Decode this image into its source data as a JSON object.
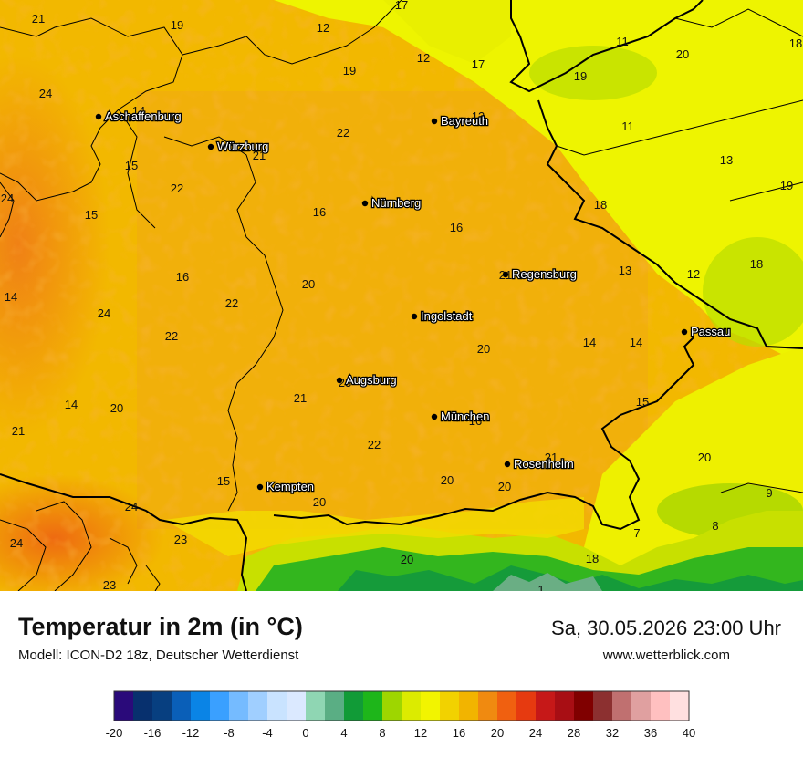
{
  "map": {
    "cities": [
      {
        "name": "Aschaffenburg"
      },
      {
        "name": "Würzburg"
      },
      {
        "name": "Bayreuth"
      },
      {
        "name": "Nürnberg"
      },
      {
        "name": "Regensburg"
      },
      {
        "name": "Ingolstadt"
      },
      {
        "name": "Passau"
      },
      {
        "name": "Augsburg"
      },
      {
        "name": "München"
      },
      {
        "name": "Rosenheim"
      },
      {
        "name": "Kempten"
      }
    ],
    "values": [
      "21",
      "19",
      "12",
      "17",
      "12",
      "17",
      "11",
      "20",
      "18",
      "24",
      "14",
      "19",
      "22",
      "13",
      "11",
      "19",
      "13",
      "19",
      "15",
      "21",
      "22",
      "16",
      "18",
      "16",
      "24",
      "15",
      "16",
      "13",
      "12",
      "18",
      "14",
      "20",
      "24",
      "22",
      "21",
      "20",
      "14",
      "14",
      "22",
      "14",
      "20",
      "21",
      "23",
      "15",
      "22",
      "21",
      "20",
      "16",
      "21",
      "20",
      "15",
      "20",
      "20",
      "24",
      "9",
      "24",
      "23",
      "7",
      "8",
      "23",
      "20",
      "18",
      "1"
    ]
  },
  "footer": {
    "title": "Temperatur in 2m (in °C)",
    "datetime": "Sa, 30.05.2026 23:00 Uhr",
    "model": "Modell: ICON-D2 18z, Deutscher Wetterdienst",
    "website": "www.wetterblick.com"
  },
  "legend": {
    "ticks": [
      "-20",
      "-16",
      "-12",
      "-8",
      "-4",
      "0",
      "4",
      "8",
      "12",
      "16",
      "20",
      "24",
      "28",
      "32",
      "36",
      "40"
    ],
    "colors": [
      "#2a0a7a",
      "#07306e",
      "#073f80",
      "#0a5fb8",
      "#0a84e6",
      "#3aa0ff",
      "#75bbff",
      "#a0cfff",
      "#c9e3ff",
      "#dbe9ff",
      "#8fd6b3",
      "#5aae84",
      "#119b37",
      "#1eb61a",
      "#9ed600",
      "#dceb00",
      "#f2f400",
      "#f2d200",
      "#f2b400",
      "#f08a10",
      "#f06010",
      "#e63a10",
      "#c61818",
      "#a80e14",
      "#800000",
      "#8c3030",
      "#c07070",
      "#e0a0a0",
      "#ffc0c0",
      "#ffe0e0"
    ]
  }
}
